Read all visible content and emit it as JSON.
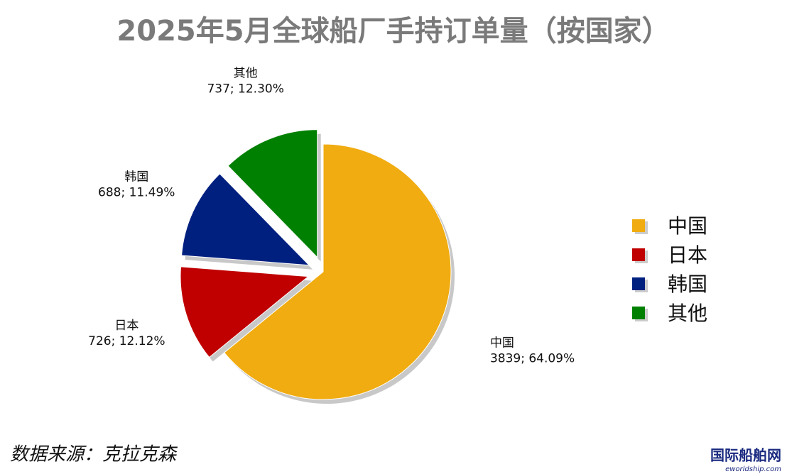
{
  "chart_data": {
    "type": "pie",
    "title": "2025年5月全球船厂手持订单量（按国家）",
    "categories": [
      "中国",
      "日本",
      "韩国",
      "其他"
    ],
    "values": [
      3839,
      726,
      688,
      737
    ],
    "value_labels": [
      "3839; 64.09%",
      "726; 12.12%",
      "688; 11.49%",
      "737; 12.30%"
    ],
    "colors": [
      "#f0ac10",
      "#c00000",
      "#002080",
      "#008000"
    ],
    "legend": "right"
  },
  "source": "数据来源：克拉克森",
  "watermark": {
    "name": "国际船舶网",
    "url": "eworldship.com"
  }
}
